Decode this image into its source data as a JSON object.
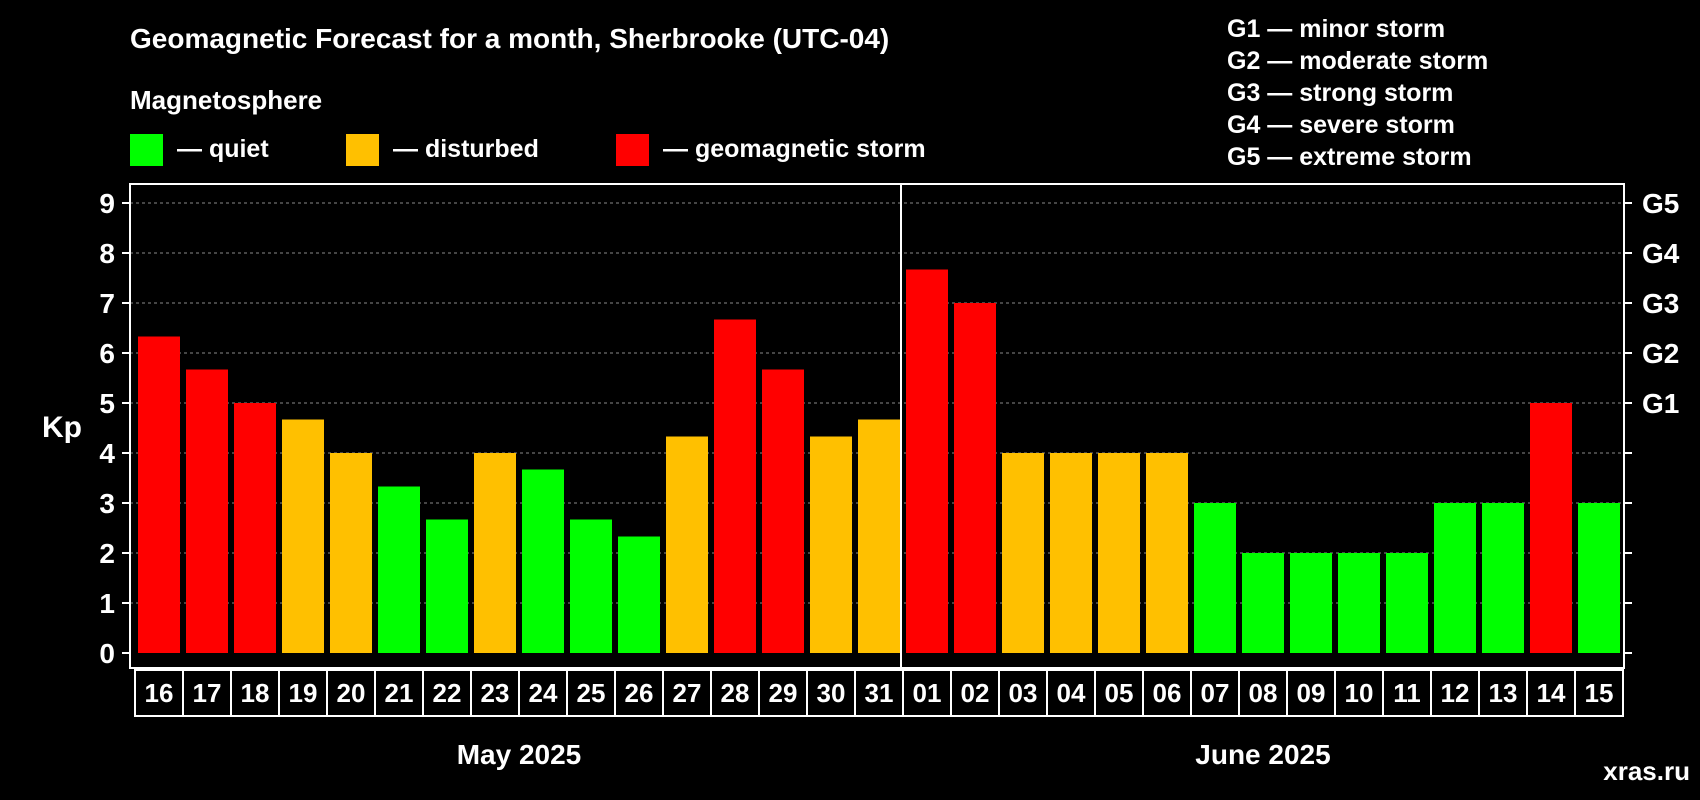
{
  "chart_data": {
    "type": "bar",
    "title": "Geomagnetic Forecast for a month, Sherbrooke (UTC-04)",
    "ylabel": "Kp",
    "ylim": [
      0,
      9
    ],
    "yticks": [
      0,
      1,
      2,
      3,
      4,
      5,
      6,
      7,
      8,
      9
    ],
    "right_axis_labels": [
      {
        "kp": 5,
        "label": "G1"
      },
      {
        "kp": 6,
        "label": "G2"
      },
      {
        "kp": 7,
        "label": "G3"
      },
      {
        "kp": 8,
        "label": "G4"
      },
      {
        "kp": 9,
        "label": "G5"
      }
    ],
    "legend_title": "Magnetosphere",
    "legend": [
      {
        "color": "#00ff00",
        "label": "— quiet"
      },
      {
        "color": "#ffc000",
        "label": "— disturbed"
      },
      {
        "color": "#ff0000",
        "label": "— geomagnetic storm"
      }
    ],
    "storm_scale": [
      "G1 — minor storm",
      "G2 — moderate storm",
      "G3 — strong storm",
      "G4 — severe storm",
      "G5 — extreme storm"
    ],
    "months": [
      {
        "label": "May 2025",
        "first_index": 0,
        "last_index": 15
      },
      {
        "label": "June 2025",
        "first_index": 16,
        "last_index": 30
      }
    ],
    "categories": [
      "16",
      "17",
      "18",
      "19",
      "20",
      "21",
      "22",
      "23",
      "24",
      "25",
      "26",
      "27",
      "28",
      "29",
      "30",
      "31",
      "01",
      "02",
      "03",
      "04",
      "05",
      "06",
      "07",
      "08",
      "09",
      "10",
      "11",
      "12",
      "13",
      "14",
      "15"
    ],
    "values": [
      6.33,
      5.67,
      5.0,
      4.67,
      4.0,
      3.33,
      2.67,
      4.0,
      3.67,
      2.67,
      2.33,
      4.33,
      6.67,
      5.67,
      4.33,
      4.67,
      7.67,
      7.0,
      4.0,
      4.0,
      4.0,
      4.0,
      3.0,
      2.0,
      2.0,
      2.0,
      2.0,
      3.0,
      3.0,
      5.0,
      3.0
    ],
    "levels": [
      "storm",
      "storm",
      "storm",
      "disturbed",
      "disturbed",
      "quiet",
      "quiet",
      "disturbed",
      "quiet",
      "quiet",
      "quiet",
      "disturbed",
      "storm",
      "storm",
      "disturbed",
      "disturbed",
      "storm",
      "storm",
      "disturbed",
      "disturbed",
      "disturbed",
      "disturbed",
      "quiet",
      "quiet",
      "quiet",
      "quiet",
      "quiet",
      "quiet",
      "quiet",
      "storm",
      "quiet"
    ],
    "colors": {
      "quiet": "#00ff00",
      "disturbed": "#ffc000",
      "storm": "#ff0000",
      "background": "#000000",
      "foreground": "#ffffff",
      "watermark": "#7f7f7f",
      "grid": "#8a8a8a"
    },
    "watermark": "xras.ru"
  }
}
